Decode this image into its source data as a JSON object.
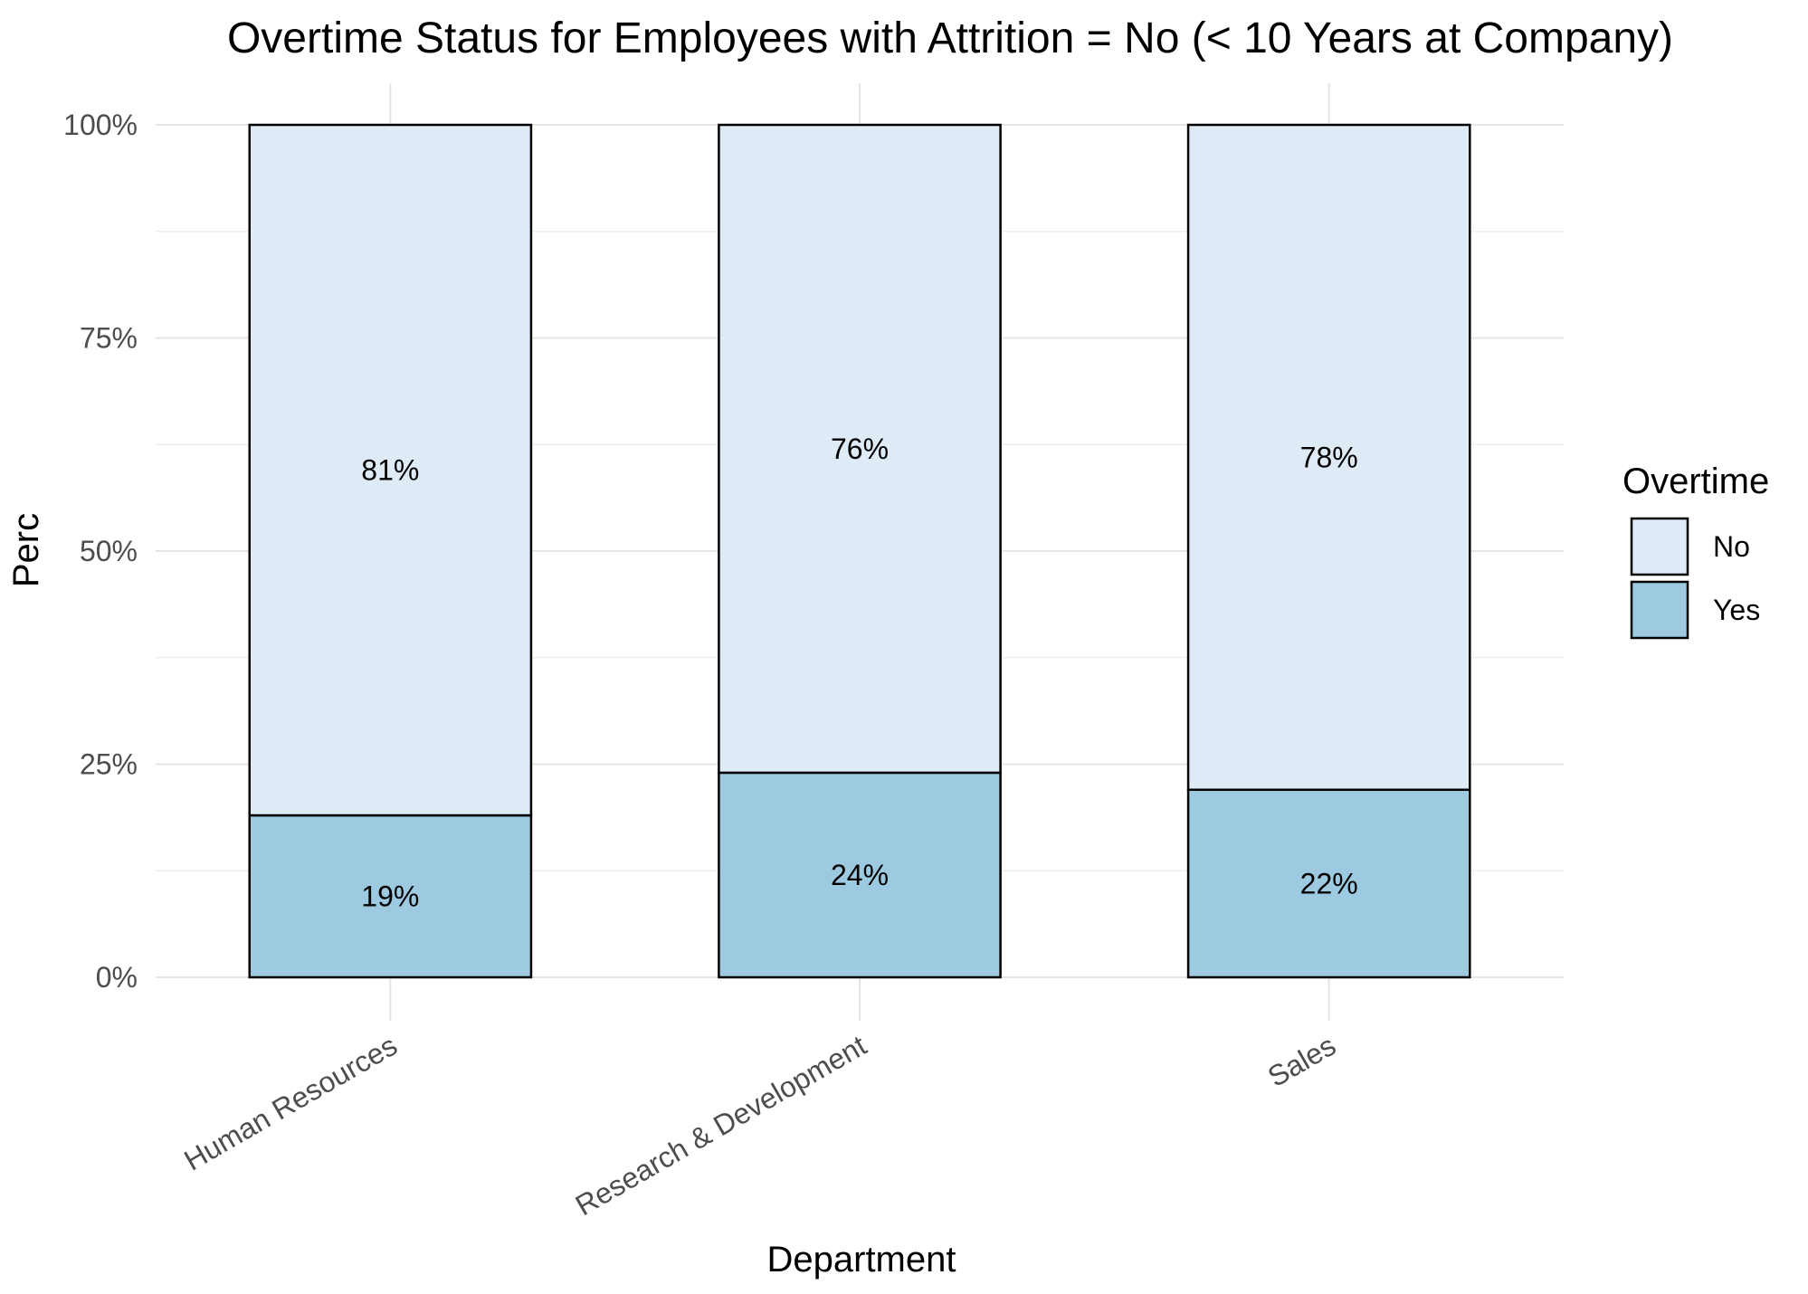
{
  "chart_data": {
    "type": "bar",
    "stacked": true,
    "title": "Overtime Status for Employees with Attrition = No (< 10 Years at Company)",
    "xlabel": "Department",
    "ylabel": "Perc",
    "categories": [
      "Human Resources",
      "Research & Development",
      "Sales"
    ],
    "series": [
      {
        "name": "Yes",
        "values": [
          19,
          24,
          22
        ],
        "color": "#9ECAE1",
        "labels": [
          "19%",
          "24%",
          "22%"
        ]
      },
      {
        "name": "No",
        "values": [
          81,
          76,
          78
        ],
        "color": "#DEEBF7",
        "labels": [
          "81%",
          "76%",
          "78%"
        ]
      }
    ],
    "ylim": [
      0,
      100
    ],
    "yticks": [
      0,
      25,
      50,
      75,
      100
    ],
    "ytick_labels": [
      "0%",
      "25%",
      "50%",
      "75%",
      "100%"
    ],
    "grid": true,
    "legend": {
      "title": "Overtime",
      "position": "right",
      "entries": [
        {
          "label": "No",
          "color": "#DEEBF7"
        },
        {
          "label": "Yes",
          "color": "#9ECAE1"
        }
      ]
    }
  }
}
